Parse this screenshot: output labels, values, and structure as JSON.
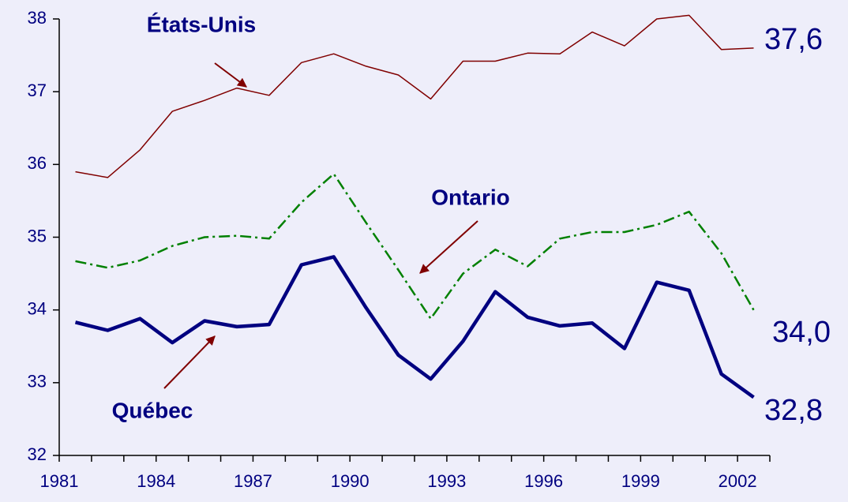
{
  "chart_data": {
    "type": "line",
    "categories": [
      "1981",
      null,
      null,
      "1984",
      null,
      null,
      "1987",
      null,
      null,
      "1990",
      null,
      null,
      "1993",
      null,
      null,
      "1996",
      null,
      null,
      "1999",
      null,
      null,
      "2002"
    ],
    "ylim": [
      32,
      38
    ],
    "yticks": [
      32,
      33,
      34,
      35,
      36,
      37,
      38
    ],
    "series": [
      {
        "name": "États-Unis",
        "color": "#800000",
        "end_label": "37,6",
        "values": [
          35.9,
          35.82,
          36.2,
          36.73,
          36.88,
          37.05,
          36.95,
          37.4,
          37.52,
          37.35,
          37.23,
          36.9,
          37.42,
          37.42,
          37.53,
          37.52,
          37.82,
          37.63,
          38.0,
          38.05,
          37.58,
          37.6
        ]
      },
      {
        "name": "Ontario",
        "color": "#008000",
        "end_label": "34,0",
        "values": [
          34.67,
          34.58,
          34.68,
          34.88,
          35.0,
          35.02,
          34.98,
          35.48,
          35.87,
          35.2,
          34.55,
          33.88,
          34.5,
          34.83,
          34.6,
          34.98,
          35.07,
          35.07,
          35.17,
          35.35,
          34.78,
          34.0
        ]
      },
      {
        "name": "Québec",
        "color": "#000080",
        "end_label": "32,8",
        "values": [
          33.83,
          33.72,
          33.88,
          33.55,
          33.85,
          33.77,
          33.8,
          34.62,
          34.73,
          34.03,
          33.38,
          33.05,
          33.57,
          34.25,
          33.9,
          33.78,
          33.82,
          33.47,
          34.38,
          34.27,
          33.12,
          32.8
        ]
      }
    ]
  }
}
